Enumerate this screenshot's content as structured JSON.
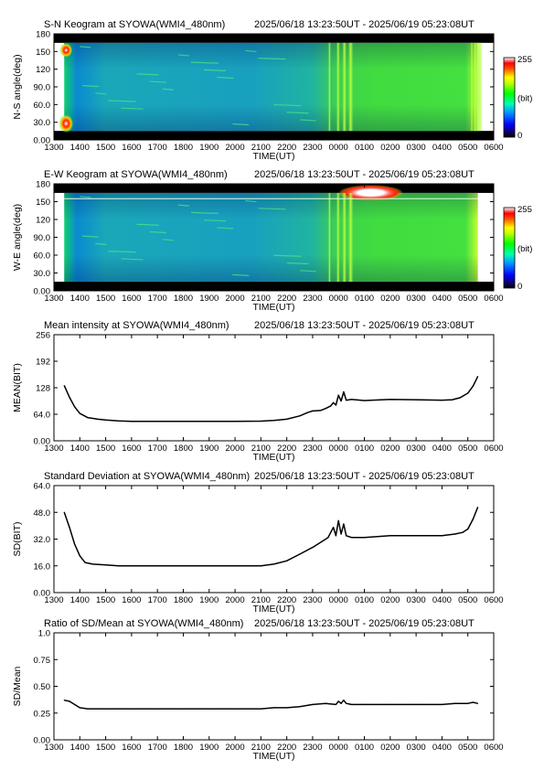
{
  "panels": [
    {
      "title": "S-N Keogram at SYOWA(WMI4_480nm)",
      "time_range": "2025/06/18 13:23:50UT - 2025/06/19 05:23:08UT",
      "xlabel": "TIME(UT)",
      "ylabel": "N-S angle(deg)",
      "colorbar": {
        "max_label": "255",
        "unit_label": "(bit)",
        "min_label": "0"
      }
    },
    {
      "title": "E-W Keogram at SYOWA(WMI4_480nm)",
      "time_range": "2025/06/18 13:23:50UT - 2025/06/19 05:23:08UT",
      "xlabel": "TIME(UT)",
      "ylabel": "W-E angle(deg)",
      "colorbar": {
        "max_label": "255",
        "unit_label": "(bit)",
        "min_label": "0"
      }
    },
    {
      "title": "Mean intensity at SYOWA(WMI4_480nm)",
      "time_range": "2025/06/18 13:23:50UT - 2025/06/19 05:23:08UT",
      "xlabel": "TIME(UT)",
      "ylabel": "MEAN(BIT)"
    },
    {
      "title": "Standard Deviation at SYOWA(WMI4_480nm)",
      "time_range": "2025/06/18 13:23:50UT - 2025/06/19 05:23:08UT",
      "xlabel": "TIME(UT)",
      "ylabel": "SD(BIT)"
    },
    {
      "title": "Ratio of SD/Mean at SYOWA(WMI4_480nm)",
      "time_range": "2025/06/18 13:23:50UT - 2025/06/19 05:23:08UT",
      "xlabel": "TIME(UT)",
      "ylabel": "SD/Mean"
    }
  ],
  "x_tick_labels": [
    "1300",
    "1400",
    "1500",
    "1600",
    "1700",
    "1800",
    "1900",
    "2000",
    "2100",
    "2200",
    "2300",
    "0000",
    "0100",
    "0200",
    "0300",
    "0400",
    "0500",
    "0600"
  ],
  "keogram_y_tick_labels": [
    "0.00",
    "30.0",
    "60.0",
    "90.0",
    "120",
    "150",
    "180"
  ],
  "chart_data": [
    {
      "type": "heatmap",
      "title": "S-N Keogram at SYOWA(WMI4_480nm)",
      "xlabel": "TIME(UT)",
      "ylabel": "N-S angle(deg)",
      "xlim": [
        13.0,
        30.0
      ],
      "ylim": [
        0,
        180
      ],
      "data_range_hours": [
        13.397,
        29.386
      ],
      "color_range": [
        0,
        255
      ],
      "colorscale": "rainbow (black-blue-cyan-green-yellow-red-white)",
      "typical_level": "green (~100 bit)",
      "features": [
        {
          "time_hours": [
            23.6,
            24.5
          ],
          "description": "bright vertical arc streaks"
        },
        {
          "time_hours": [
            13.4,
            13.8
          ],
          "description": "bright near horizon at start (twilight)"
        },
        {
          "time_hours": [
            29.1,
            29.4
          ],
          "description": "bright near horizon at end (twilight)"
        }
      ]
    },
    {
      "type": "heatmap",
      "title": "E-W Keogram at SYOWA(WMI4_480nm)",
      "xlabel": "TIME(UT)",
      "ylabel": "W-E angle(deg)",
      "xlim": [
        13.0,
        30.0
      ],
      "ylim": [
        0,
        180
      ],
      "data_range_hours": [
        13.397,
        29.386
      ],
      "color_range": [
        0,
        255
      ],
      "colorscale": "rainbow (black-blue-cyan-green-yellow-red-white)",
      "typical_level": "green (~100 bit)",
      "features": [
        {
          "time_hours": [
            24.0,
            26.5
          ],
          "angle_deg": [
            155,
            175
          ],
          "description": "saturated bright spot (moon/light source)"
        },
        {
          "time_hours": [
            23.6,
            24.5
          ],
          "description": "bright vertical streaks"
        }
      ]
    },
    {
      "type": "line",
      "title": "Mean intensity at SYOWA(WMI4_480nm)",
      "xlabel": "TIME(UT)",
      "ylabel": "MEAN(BIT)",
      "xlim": [
        13.0,
        30.0
      ],
      "ylim": [
        0,
        256
      ],
      "y_ticks": [
        "0.00",
        "64.0",
        "128",
        "192",
        "256"
      ],
      "x": [
        13.4,
        13.6,
        13.8,
        14.0,
        14.3,
        14.7,
        15.0,
        15.5,
        16.0,
        17.0,
        18.0,
        19.0,
        20.0,
        21.0,
        21.5,
        22.0,
        22.5,
        22.8,
        23.0,
        23.3,
        23.5,
        23.7,
        23.8,
        23.9,
        24.0,
        24.1,
        24.2,
        24.3,
        24.5,
        25.0,
        26.0,
        27.0,
        28.0,
        28.4,
        28.7,
        29.0,
        29.2,
        29.38
      ],
      "y": [
        133,
        105,
        82,
        66,
        56,
        52,
        50,
        48,
        47,
        47,
        47,
        47,
        47,
        47.5,
        49,
        52,
        60,
        68,
        72,
        73,
        78,
        84,
        92,
        86,
        110,
        96,
        118,
        98,
        100,
        97,
        100,
        99,
        98,
        99,
        104,
        115,
        132,
        155
      ]
    },
    {
      "type": "line",
      "title": "Standard Deviation at SYOWA(WMI4_480nm)",
      "xlabel": "TIME(UT)",
      "ylabel": "SD(BIT)",
      "xlim": [
        13.0,
        30.0
      ],
      "ylim": [
        0,
        64
      ],
      "y_ticks": [
        "0.00",
        "16.0",
        "32.0",
        "48.0",
        "64.0"
      ],
      "x": [
        13.4,
        13.6,
        13.8,
        14.0,
        14.2,
        14.5,
        15.0,
        15.5,
        16.0,
        17.0,
        18.0,
        19.0,
        20.0,
        21.0,
        21.5,
        22.0,
        22.5,
        23.0,
        23.3,
        23.6,
        23.8,
        23.9,
        24.0,
        24.1,
        24.2,
        24.3,
        24.5,
        25.0,
        26.0,
        27.0,
        28.0,
        28.5,
        28.8,
        29.0,
        29.2,
        29.38
      ],
      "y": [
        48,
        39,
        29,
        22,
        18,
        17,
        16.5,
        16,
        16,
        16,
        16,
        16,
        16,
        16,
        17,
        19,
        23,
        27,
        30,
        33,
        39,
        34,
        43,
        35,
        41,
        34,
        33,
        33,
        34,
        34,
        34,
        35,
        36,
        38,
        44,
        51
      ]
    },
    {
      "type": "line",
      "title": "Ratio of SD/Mean at SYOWA(WMI4_480nm)",
      "xlabel": "TIME(UT)",
      "ylabel": "SD/Mean",
      "xlim": [
        13.0,
        30.0
      ],
      "ylim": [
        0,
        1
      ],
      "y_ticks": [
        "0.00",
        "0.25",
        "0.50",
        "0.75",
        "1.0"
      ],
      "x": [
        13.4,
        13.6,
        13.8,
        14.0,
        14.3,
        15.0,
        16.0,
        17.0,
        18.0,
        19.0,
        20.0,
        21.0,
        21.5,
        22.0,
        22.5,
        23.0,
        23.5,
        23.9,
        24.0,
        24.1,
        24.2,
        24.3,
        24.5,
        25.0,
        26.0,
        27.0,
        28.0,
        28.5,
        29.0,
        29.2,
        29.38
      ],
      "y": [
        0.37,
        0.36,
        0.33,
        0.3,
        0.29,
        0.29,
        0.29,
        0.29,
        0.29,
        0.29,
        0.29,
        0.29,
        0.3,
        0.3,
        0.31,
        0.33,
        0.34,
        0.33,
        0.36,
        0.34,
        0.37,
        0.34,
        0.33,
        0.33,
        0.33,
        0.33,
        0.33,
        0.34,
        0.34,
        0.35,
        0.34
      ]
    }
  ]
}
